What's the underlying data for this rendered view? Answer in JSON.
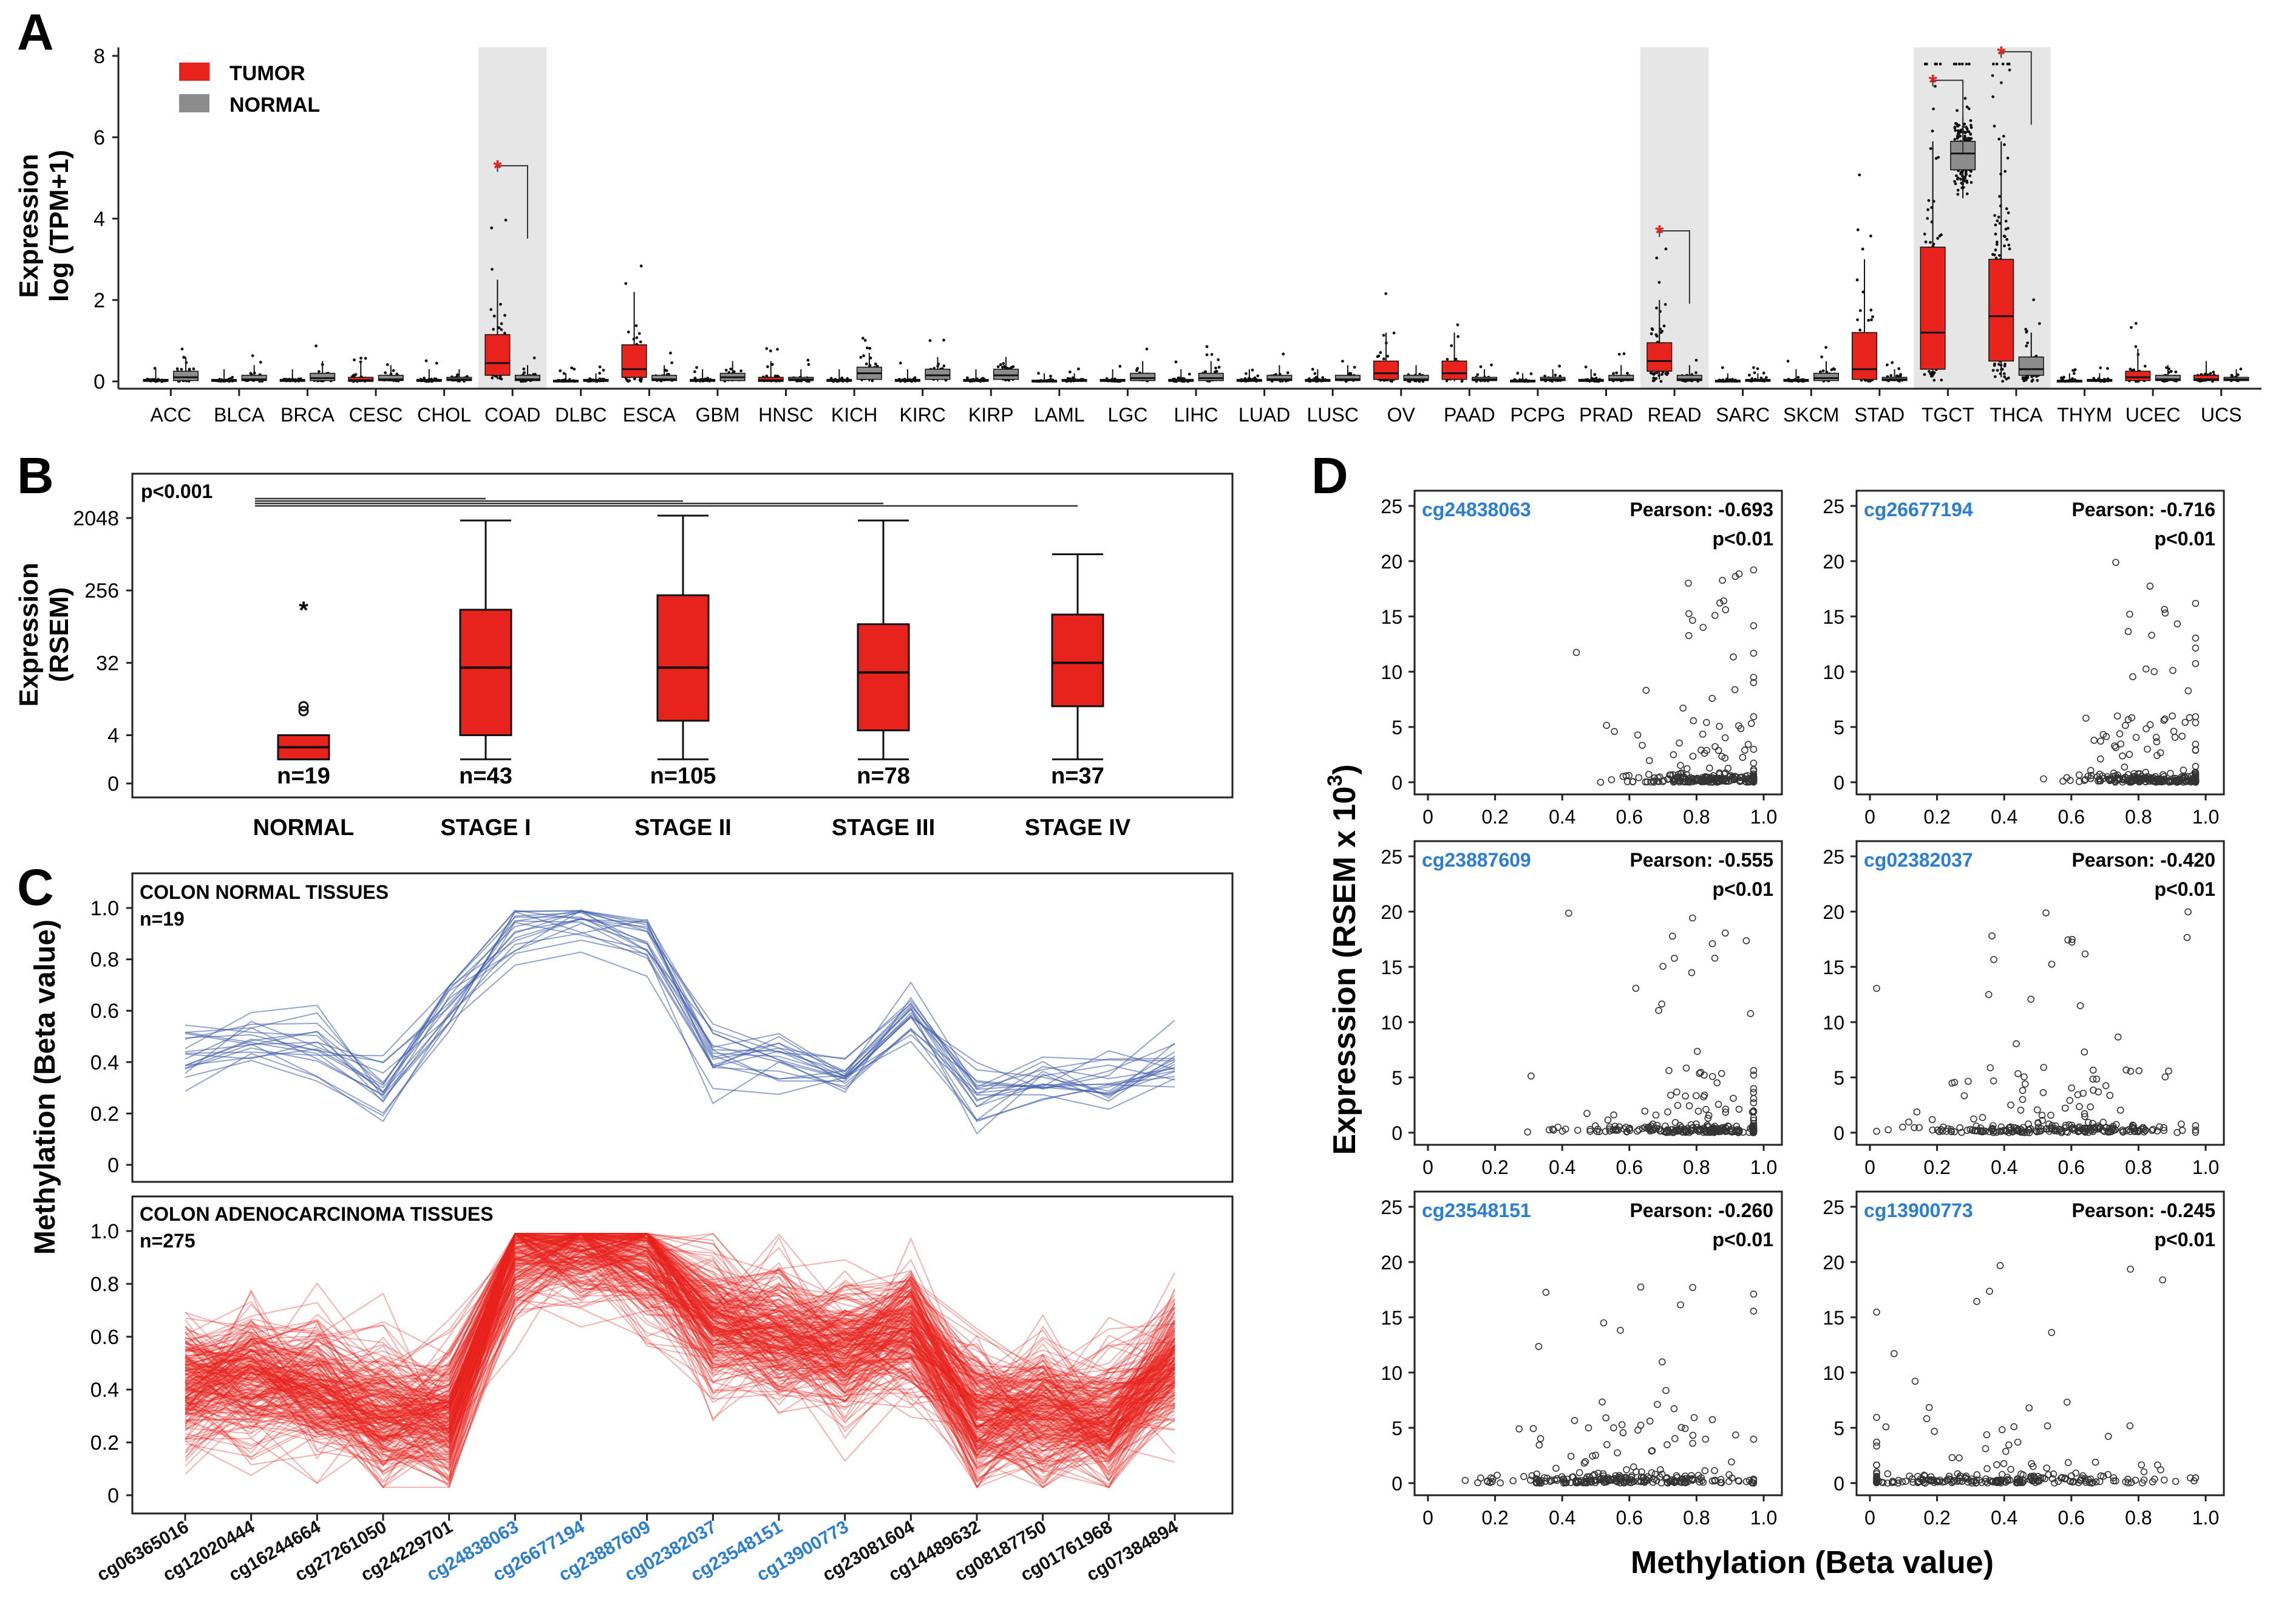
{
  "colors": {
    "tumor": "#e8221d",
    "normal": "#8c8c8c",
    "blue_line": "#3a5aa8",
    "red_line": "#e8221d",
    "highlight": "#e6e6e6",
    "probe_blue": "#2a7fd4"
  },
  "chart_data": [
    {
      "id": "A",
      "panel_label": "A",
      "type": "box",
      "ylabel_line1": "Expression",
      "ylabel_line2": "log (TPM+1)",
      "ylim": [
        0,
        8
      ],
      "yticks": [
        "0",
        "2",
        "4",
        "6",
        "8"
      ],
      "legend": [
        "TUMOR",
        "NORMAL"
      ],
      "categories": [
        "ACC",
        "BLCA",
        "BRCA",
        "CESC",
        "CHOL",
        "COAD",
        "DLBC",
        "ESCA",
        "GBM",
        "HNSC",
        "KICH",
        "KIRC",
        "KIRP",
        "LAML",
        "LGC",
        "LIHC",
        "LUAD",
        "LUSC",
        "OV",
        "PAAD",
        "PCPG",
        "PRAD",
        "READ",
        "SARC",
        "SKCM",
        "STAD",
        "TGCT",
        "THCA",
        "THYM",
        "UCEC",
        "UCS"
      ],
      "highlighted": [
        "COAD",
        "READ",
        "TGCT",
        "THCA"
      ],
      "tumor_box": [
        [
          0,
          0,
          0.02,
          0.05,
          0.3
        ],
        [
          0,
          0,
          0.02,
          0.05,
          0.3
        ],
        [
          0,
          0,
          0.02,
          0.05,
          0.3
        ],
        [
          0,
          0,
          0.03,
          0.1,
          0.5
        ],
        [
          0,
          0,
          0.02,
          0.05,
          0.3
        ],
        [
          0.05,
          0.15,
          0.45,
          1.15,
          2.5
        ],
        [
          0,
          0,
          0.01,
          0.03,
          0.2
        ],
        [
          0.05,
          0.1,
          0.3,
          0.9,
          2.2
        ],
        [
          0,
          0,
          0.02,
          0.05,
          0.3
        ],
        [
          0,
          0,
          0.03,
          0.1,
          0.5
        ],
        [
          0,
          0,
          0.02,
          0.05,
          0.3
        ],
        [
          0,
          0,
          0.02,
          0.05,
          0.3
        ],
        [
          0,
          0,
          0.02,
          0.05,
          0.3
        ],
        [
          0,
          0,
          0.01,
          0.03,
          0.2
        ],
        [
          0,
          0,
          0.02,
          0.05,
          0.3
        ],
        [
          0,
          0,
          0.02,
          0.05,
          0.3
        ],
        [
          0,
          0,
          0.02,
          0.05,
          0.3
        ],
        [
          0,
          0,
          0.02,
          0.05,
          0.3
        ],
        [
          0,
          0.05,
          0.2,
          0.5,
          1.2
        ],
        [
          0,
          0.05,
          0.2,
          0.5,
          1.2
        ],
        [
          0,
          0,
          0.01,
          0.03,
          0.2
        ],
        [
          0,
          0,
          0.02,
          0.05,
          0.3
        ],
        [
          0.05,
          0.25,
          0.5,
          0.95,
          2.0
        ],
        [
          0,
          0,
          0.01,
          0.03,
          0.2
        ],
        [
          0,
          0,
          0.02,
          0.05,
          0.3
        ],
        [
          0,
          0.05,
          0.3,
          1.2,
          3.0
        ],
        [
          0.1,
          0.3,
          1.2,
          3.3,
          5.9
        ],
        [
          0.1,
          0.5,
          1.6,
          3.0,
          5.9
        ],
        [
          0,
          0,
          0.01,
          0.03,
          0.2
        ],
        [
          0,
          0.02,
          0.1,
          0.25,
          0.8
        ],
        [
          0,
          0.02,
          0.05,
          0.15,
          0.5
        ]
      ],
      "normal_box": [
        [
          0,
          0.02,
          0.1,
          0.25,
          0.6
        ],
        [
          0,
          0.02,
          0.05,
          0.15,
          0.4
        ],
        [
          0,
          0.02,
          0.08,
          0.2,
          0.5
        ],
        [
          0,
          0.02,
          0.05,
          0.15,
          0.4
        ],
        [
          0,
          0.02,
          0.05,
          0.1,
          0.3
        ],
        [
          0,
          0.02,
          0.05,
          0.15,
          0.4
        ],
        [
          0,
          0,
          0.02,
          0.05,
          0.2
        ],
        [
          0,
          0.02,
          0.05,
          0.15,
          0.4
        ],
        [
          0,
          0.02,
          0.1,
          0.2,
          0.5
        ],
        [
          0,
          0.02,
          0.05,
          0.1,
          0.3
        ],
        [
          0,
          0.05,
          0.2,
          0.35,
          0.7
        ],
        [
          0,
          0.05,
          0.15,
          0.3,
          0.6
        ],
        [
          0,
          0.05,
          0.15,
          0.3,
          0.6
        ],
        [
          0,
          0,
          0.02,
          0.05,
          0.2
        ],
        [
          0,
          0.02,
          0.08,
          0.2,
          0.5
        ],
        [
          0,
          0.02,
          0.08,
          0.2,
          0.5
        ],
        [
          0,
          0.02,
          0.05,
          0.15,
          0.4
        ],
        [
          0,
          0.02,
          0.05,
          0.15,
          0.4
        ],
        [
          0,
          0.02,
          0.05,
          0.15,
          0.4
        ],
        [
          0,
          0.02,
          0.05,
          0.1,
          0.3
        ],
        [
          0,
          0.02,
          0.05,
          0.1,
          0.3
        ],
        [
          0,
          0.02,
          0.05,
          0.15,
          0.4
        ],
        [
          0,
          0.02,
          0.05,
          0.15,
          0.4
        ],
        [
          0,
          0,
          0.02,
          0.05,
          0.2
        ],
        [
          0,
          0.02,
          0.08,
          0.2,
          0.5
        ],
        [
          0,
          0.02,
          0.05,
          0.1,
          0.3
        ],
        [
          4.5,
          5.2,
          5.6,
          5.9,
          6.5
        ],
        [
          0.1,
          0.15,
          0.3,
          0.6,
          1.2
        ],
        [
          0,
          0,
          0.02,
          0.05,
          0.2
        ],
        [
          0,
          0.02,
          0.05,
          0.15,
          0.4
        ],
        [
          0,
          0.02,
          0.05,
          0.1,
          0.3
        ]
      ],
      "significant": [
        {
          "category": "COAD",
          "y": 5.3
        },
        {
          "category": "READ",
          "y": 3.7
        },
        {
          "category": "TGCT",
          "y": 7.4
        },
        {
          "category": "THCA",
          "y": 8.1
        }
      ],
      "significance_mark": "*"
    },
    {
      "id": "B",
      "panel_label": "B",
      "type": "box",
      "ylabel_line1": "Expression",
      "ylabel_line2": "(RSEM)",
      "yticks": [
        "0",
        "4",
        "32",
        "256",
        "2048"
      ],
      "pvalue": "p<0.001",
      "categories": [
        "NORMAL",
        "STAGE I",
        "STAGE II",
        "STAGE III",
        "STAGE IV"
      ],
      "n_labels": [
        "n=19",
        "n=43",
        "n=105",
        "n=78",
        "n=37"
      ],
      "boxes_log2": [
        [
          1,
          1,
          1.5,
          2,
          2
        ],
        [
          1,
          2,
          4.8,
          7.2,
          10.9
        ],
        [
          1,
          2.6,
          4.8,
          7.8,
          11.1
        ],
        [
          1,
          2.2,
          4.6,
          6.6,
          10.9
        ],
        [
          1,
          3.2,
          5,
          7,
          9.5
        ]
      ],
      "outliers_log2": [
        {
          "category": "NORMAL",
          "y": 7.2,
          "marker": "*"
        },
        {
          "category": "NORMAL",
          "y": 3.2,
          "marker": "o"
        },
        {
          "category": "NORMAL",
          "y": 3.0,
          "marker": "o"
        }
      ]
    },
    {
      "id": "C",
      "panel_label": "C",
      "type": "line",
      "ylabel": "Methylation (Beta value)",
      "ylim": [
        0,
        1
      ],
      "yticks": [
        "0",
        "0.2",
        "0.4",
        "0.6",
        "0.8",
        "1.0"
      ],
      "probes": [
        "cg06365016",
        "cg12020444",
        "cg16244664",
        "cg27261050",
        "cg24229701",
        "cg24838063",
        "cg26677194",
        "cg23887609",
        "cg02382037",
        "cg23548151",
        "cg13900773",
        "cg23081604",
        "cg14489632",
        "cg08187750",
        "cg01761968",
        "cg07384894"
      ],
      "highlighted_probes": [
        "cg24838063",
        "cg26677194",
        "cg23887609",
        "cg02382037",
        "cg23548151",
        "cg13900773"
      ],
      "normal_title": "COLON NORMAL TISSUES",
      "normal_n": "n=19",
      "normal_mean": [
        0.42,
        0.5,
        0.48,
        0.3,
        0.65,
        0.93,
        0.95,
        0.9,
        0.45,
        0.42,
        0.35,
        0.6,
        0.3,
        0.32,
        0.35,
        0.42
      ],
      "tumor_title": "COLON ADENOCARCINOMA TISSUES",
      "tumor_n": "n=275",
      "tumor_mean": [
        0.42,
        0.45,
        0.4,
        0.3,
        0.3,
        0.93,
        0.95,
        0.9,
        0.65,
        0.6,
        0.55,
        0.62,
        0.28,
        0.3,
        0.28,
        0.5
      ]
    },
    {
      "id": "D",
      "panel_label": "D",
      "type": "scatter",
      "ylabel_main": "Expresssion (RSEM x 10",
      "ylabel_sup": "3",
      "ylabel_close": ")",
      "xlabel": "Methylation (Beta value)",
      "xticks": [
        "0",
        "0.2",
        "0.4",
        "0.6",
        "0.8",
        "1.0"
      ],
      "yticks": [
        "0",
        "5",
        "10",
        "15",
        "20",
        "25"
      ],
      "xlim": [
        0,
        1
      ],
      "ylim": [
        0,
        25
      ],
      "panels": [
        {
          "probe": "cg24838063",
          "pearson": "Pearson: -0.693",
          "pvalue": "p<0.01",
          "center": 0.85,
          "spread": 0.12
        },
        {
          "probe": "cg26677194",
          "pearson": "Pearson: -0.716",
          "pvalue": "p<0.01",
          "center": 0.86,
          "spread": 0.12
        },
        {
          "probe": "cg23887609",
          "pearson": "Pearson: -0.555",
          "pvalue": "p<0.01",
          "center": 0.8,
          "spread": 0.18
        },
        {
          "probe": "cg02382037",
          "pearson": "Pearson: -0.420",
          "pvalue": "p<0.01",
          "center": 0.55,
          "spread": 0.2
        },
        {
          "probe": "cg23548151",
          "pearson": "Pearson: -0.260",
          "pvalue": "p<0.01",
          "center": 0.58,
          "spread": 0.2
        },
        {
          "probe": "cg13900773",
          "pearson": "Pearson: -0.245",
          "pvalue": "p<0.01",
          "center": 0.35,
          "spread": 0.25
        }
      ]
    }
  ]
}
